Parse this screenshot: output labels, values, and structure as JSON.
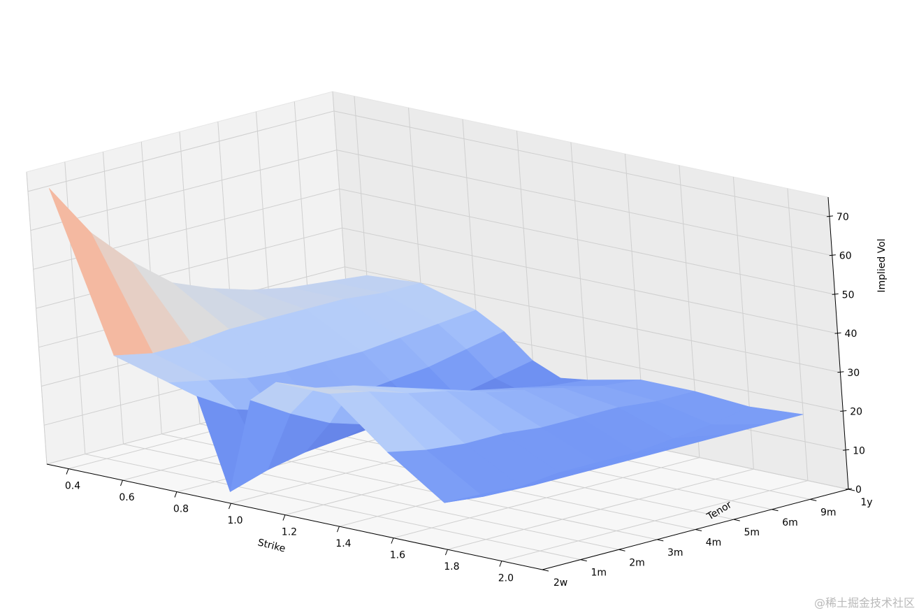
{
  "chart_data": {
    "type": "surface3d",
    "title": "",
    "xlabel": "Strike",
    "ylabel": "Tenor",
    "zlabel": "Implied Vol",
    "x_ticks": [
      0.4,
      0.6,
      0.8,
      1.0,
      1.2,
      1.4,
      1.6,
      1.8,
      2.0
    ],
    "x_tick_labels": [
      "0.4",
      "0.6",
      "0.8",
      "1.0",
      "1.2",
      "1.4",
      "1.6",
      "1.8",
      "2.0"
    ],
    "xlim": [
      0.32,
      2.15
    ],
    "y_tick_labels": [
      "2w",
      "1m",
      "2m",
      "3m",
      "4m",
      "5m",
      "6m",
      "9m",
      "1y"
    ],
    "z_ticks": [
      0,
      10,
      20,
      30,
      40,
      50,
      60,
      70
    ],
    "z_tick_labels": [
      "0",
      "10",
      "20",
      "30",
      "40",
      "50",
      "60",
      "70"
    ],
    "zlim": [
      0,
      75
    ],
    "colormap": "coolwarm",
    "colormap_stops": [
      "#3b4cc0",
      "#7396f5",
      "#b0cbfc",
      "#dddcdc",
      "#f6b69b",
      "#e7745b",
      "#b40426"
    ],
    "grid": true,
    "strikes": [
      0.4,
      0.6,
      0.8,
      0.9,
      1.0,
      1.1,
      1.2,
      1.4,
      1.6,
      1.8,
      2.0
    ],
    "surface": [
      [
        72,
        32,
        28,
        26,
        3,
        28,
        34,
        34,
        22,
        12,
        18
      ],
      [
        58,
        30,
        26,
        20,
        6,
        22,
        30,
        32,
        20,
        11,
        17
      ],
      [
        48,
        30,
        24,
        17,
        8,
        17,
        28,
        29,
        19,
        11,
        17
      ],
      [
        40,
        31,
        23,
        16,
        9,
        14,
        25,
        27,
        19,
        12,
        17
      ],
      [
        36,
        31,
        23,
        16,
        10,
        12,
        22,
        24,
        18,
        12,
        17
      ],
      [
        33,
        31,
        23,
        17,
        11,
        11,
        19,
        22,
        18,
        12,
        17
      ],
      [
        31,
        31,
        24,
        18,
        12,
        11,
        17,
        20,
        18,
        13,
        17
      ],
      [
        30,
        30,
        25,
        20,
        14,
        12,
        15,
        18,
        17,
        14,
        17
      ],
      [
        29,
        30,
        26,
        22,
        16,
        13,
        14,
        17,
        17,
        16,
        17
      ]
    ]
  },
  "watermark": "@稀土掘金技术社区"
}
